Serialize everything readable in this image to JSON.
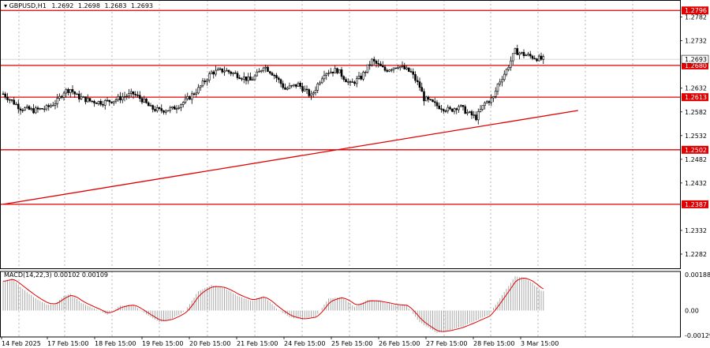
{
  "chart_data": {
    "type": "candlestick",
    "title": "GBPUSD,H1",
    "ohlc_header": {
      "symbol": "GBPUSD,H1",
      "open": "1.2692",
      "high": "1.2698",
      "low": "1.2683",
      "close": "1.2693"
    },
    "price_axis": {
      "ylim": [
        1.2252,
        1.2818
      ],
      "ticks": [
        "1.2782",
        "1.2732",
        "1.2632",
        "1.2582",
        "1.2532",
        "1.2482",
        "1.2432",
        "1.2332",
        "1.2282"
      ]
    },
    "time_axis": {
      "labels": [
        "14 Feb 2025",
        "17 Feb 15:00",
        "18 Feb 15:00",
        "19 Feb 15:00",
        "20 Feb 15:00",
        "21 Feb 15:00",
        "24 Feb 15:00",
        "25 Feb 15:00",
        "26 Feb 15:00",
        "27 Feb 15:00",
        "28 Feb 15:00",
        "3 Mar 15:00"
      ]
    },
    "levels": [
      {
        "price": 1.2796,
        "label": "1.2796",
        "color": "#e00000"
      },
      {
        "price": 1.268,
        "label": "1.2680",
        "color": "#e00000"
      },
      {
        "price": 1.2613,
        "label": "1.2613",
        "color": "#e00000"
      },
      {
        "price": 1.2502,
        "label": "1.2502",
        "color": "#e00000"
      },
      {
        "price": 1.2387,
        "label": "1.2387",
        "color": "#e00000"
      }
    ],
    "current_price": {
      "price": 1.2693,
      "label": "1.2693"
    },
    "trendline": {
      "from": {
        "bar": 0,
        "price": 1.2387
      },
      "to": {
        "bar": 265,
        "price": 1.2585
      },
      "color": "#e00000"
    },
    "price_path": [
      [
        0,
        1.262
      ],
      [
        4,
        1.2605
      ],
      [
        8,
        1.259
      ],
      [
        14,
        1.2585
      ],
      [
        20,
        1.259
      ],
      [
        25,
        1.2605
      ],
      [
        28,
        1.2625
      ],
      [
        31,
        1.263
      ],
      [
        34,
        1.2615
      ],
      [
        40,
        1.2605
      ],
      [
        46,
        1.2602
      ],
      [
        52,
        1.2608
      ],
      [
        56,
        1.2615
      ],
      [
        60,
        1.262
      ],
      [
        64,
        1.2608
      ],
      [
        68,
        1.259
      ],
      [
        72,
        1.2585
      ],
      [
        78,
        1.2588
      ],
      [
        84,
        1.2605
      ],
      [
        90,
        1.263
      ],
      [
        96,
        1.2665
      ],
      [
        102,
        1.267
      ],
      [
        108,
        1.266
      ],
      [
        114,
        1.2648
      ],
      [
        118,
        1.2665
      ],
      [
        120,
        1.268
      ],
      [
        125,
        1.266
      ],
      [
        130,
        1.263
      ],
      [
        136,
        1.264
      ],
      [
        142,
        1.2615
      ],
      [
        148,
        1.2665
      ],
      [
        154,
        1.267
      ],
      [
        160,
        1.264
      ],
      [
        165,
        1.2655
      ],
      [
        170,
        1.269
      ],
      [
        176,
        1.267
      ],
      [
        182,
        1.268
      ],
      [
        188,
        1.2665
      ],
      [
        192,
        1.2635
      ],
      [
        194,
        1.261
      ],
      [
        200,
        1.2595
      ],
      [
        206,
        1.2585
      ],
      [
        210,
        1.2595
      ],
      [
        214,
        1.258
      ],
      [
        218,
        1.257
      ],
      [
        222,
        1.26
      ],
      [
        226,
        1.2612
      ],
      [
        228,
        1.264
      ],
      [
        232,
        1.267
      ],
      [
        236,
        1.271
      ],
      [
        240,
        1.2703
      ],
      [
        244,
        1.2698
      ],
      [
        248,
        1.2693
      ]
    ],
    "macd": {
      "label": "MACD(14,22,3) 0.00102 0.00109",
      "params": [
        14,
        22,
        3
      ],
      "main": 0.00102,
      "signal": 0.00109,
      "ylim": [
        -0.00135,
        0.002
      ],
      "ticks": [
        "0.00188",
        "0.00",
        "-0.00129"
      ],
      "path": [
        [
          0,
          0.0015
        ],
        [
          4,
          0.00165
        ],
        [
          8,
          0.0012
        ],
        [
          14,
          0.0007
        ],
        [
          20,
          0.0003
        ],
        [
          24,
          0.00035
        ],
        [
          28,
          0.00075
        ],
        [
          31,
          0.00085
        ],
        [
          36,
          0.0004
        ],
        [
          42,
          0.0001
        ],
        [
          48,
          -0.0002
        ],
        [
          54,
          0.00025
        ],
        [
          60,
          0.0003
        ],
        [
          66,
          -0.0002
        ],
        [
          72,
          -0.0006
        ],
        [
          78,
          -0.0004
        ],
        [
          84,
          0.0
        ],
        [
          90,
          0.001
        ],
        [
          96,
          0.0013
        ],
        [
          102,
          0.00115
        ],
        [
          108,
          0.00075
        ],
        [
          114,
          0.0005
        ],
        [
          120,
          0.00075
        ],
        [
          126,
          0.0001
        ],
        [
          132,
          -0.00035
        ],
        [
          138,
          -0.00045
        ],
        [
          144,
          -0.0003
        ],
        [
          150,
          0.0006
        ],
        [
          156,
          0.0007
        ],
        [
          162,
          0.0002
        ],
        [
          168,
          0.00055
        ],
        [
          174,
          0.00045
        ],
        [
          180,
          0.0003
        ],
        [
          186,
          0.00025
        ],
        [
          192,
          -0.0006
        ],
        [
          200,
          -0.00115
        ],
        [
          206,
          -0.001
        ],
        [
          212,
          -0.0008
        ],
        [
          218,
          -0.0005
        ],
        [
          224,
          -0.0002
        ],
        [
          230,
          0.0008
        ],
        [
          236,
          0.00175
        ],
        [
          240,
          0.00168
        ],
        [
          244,
          0.0014
        ],
        [
          248,
          0.001
        ]
      ]
    }
  }
}
